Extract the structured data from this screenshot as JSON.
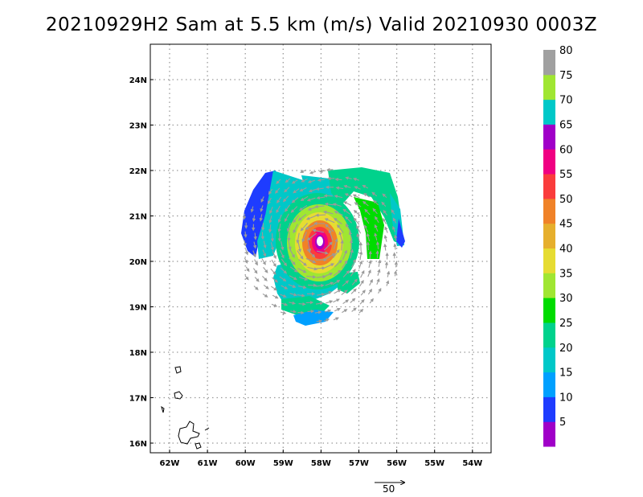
{
  "title": "20210929H2 Sam at 5.5 km (m/s) Valid 20210930 0003Z",
  "map": {
    "lat_labels": [
      "16N",
      "17N",
      "18N",
      "19N",
      "20N",
      "21N",
      "22N",
      "23N",
      "24N"
    ],
    "lon_labels": [
      "62W",
      "61W",
      "60W",
      "59W",
      "58W",
      "57W",
      "56W",
      "55W",
      "54W"
    ],
    "lat_range": [
      15.85,
      24.75
    ],
    "lon_range": [
      -62.5,
      -53.5
    ],
    "grid": "dotted",
    "storm_center": {
      "lat": 20.45,
      "lon": -58.05
    }
  },
  "colorbar": {
    "labels": [
      "5",
      "10",
      "15",
      "20",
      "25",
      "30",
      "35",
      "40",
      "45",
      "50",
      "55",
      "60",
      "65",
      "70",
      "75",
      "80"
    ],
    "colors": [
      "#a000c8",
      "#1e3cff",
      "#00a0ff",
      "#00c8c8",
      "#00d28c",
      "#00dc00",
      "#a0e632",
      "#e6dc32",
      "#e6af2d",
      "#f08228",
      "#fa3c3c",
      "#f00082",
      "#a000c8",
      "#00c8c8",
      "#a0e632",
      "#a0a0a0"
    ]
  },
  "scale_vector": {
    "label": "50"
  }
}
